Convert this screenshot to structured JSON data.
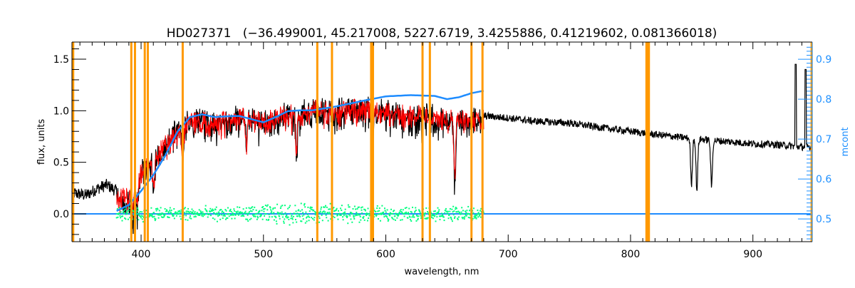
{
  "chart_data": {
    "type": "line",
    "title": "HD027371   (−36.499001, 45.217008, 5227.6719, 3.4255886, 0.41219602, 0.081366018)",
    "xlabel": "wavelength, nm",
    "ylabel": "flux, units",
    "y2label": "mcont",
    "xlim": [
      343.5,
      948.5
    ],
    "ylim": [
      -0.27,
      1.666
    ],
    "y2lim": [
      0.443,
      0.943
    ],
    "xticks": [
      "400",
      "500",
      "600",
      "700",
      "800",
      "900"
    ],
    "xtick_values": [
      400,
      500,
      600,
      700,
      800,
      900
    ],
    "yticks": [
      "0.0",
      "0.5",
      "1.0",
      "1.5"
    ],
    "ytick_values": [
      0,
      0.5,
      1.0,
      1.5
    ],
    "y2ticks": [
      "0.5",
      "0.6",
      "0.7",
      "0.8",
      "0.9"
    ],
    "y2tick_values": [
      0.5,
      0.6,
      0.7,
      0.8,
      0.9
    ],
    "colors": {
      "observed": "#000000",
      "model": "#ff0000",
      "residual": "#00ff7f",
      "continuum": "#1e8cff",
      "mask": "#ff9900",
      "zero": "#1e8cff"
    },
    "series": [
      {
        "name": "observed flux",
        "axis": "left",
        "x": [
          345,
          355,
          365,
          372,
          380,
          385,
          390,
          395,
          400,
          405,
          410,
          415,
          420,
          425,
          430,
          435,
          440,
          450,
          460,
          470,
          480,
          490,
          500,
          510,
          520,
          530,
          540,
          550,
          560,
          570,
          580,
          590,
          600,
          610,
          620,
          630,
          640,
          650,
          660,
          670,
          680,
          700,
          720,
          750,
          780,
          800,
          820,
          850,
          880,
          900,
          920,
          930,
          940,
          948
        ],
        "y": [
          0.2,
          0.18,
          0.25,
          0.28,
          0.22,
          0.1,
          0.15,
          0.25,
          0.45,
          0.5,
          0.55,
          0.62,
          0.72,
          0.8,
          0.85,
          0.9,
          0.95,
          0.95,
          0.92,
          0.95,
          1.0,
          0.98,
          0.92,
          0.97,
          1.0,
          1.02,
          1.05,
          1.05,
          1.03,
          1.07,
          1.05,
          1.05,
          1.02,
          1.01,
          1.0,
          0.99,
          0.98,
          0.96,
          0.95,
          0.95,
          0.95,
          0.93,
          0.9,
          0.88,
          0.83,
          0.8,
          0.77,
          0.73,
          0.7,
          0.68,
          0.67,
          0.66,
          0.65,
          0.65
        ]
      },
      {
        "name": "model flux",
        "axis": "left",
        "x": [
          380,
          390,
          400,
          410,
          420,
          430,
          440,
          450,
          460,
          470,
          480,
          490,
          500,
          510,
          520,
          530,
          540,
          550,
          560,
          570,
          580,
          590,
          600,
          620,
          640,
          660,
          680
        ],
        "y": [
          0.18,
          0.2,
          0.43,
          0.55,
          0.72,
          0.82,
          0.93,
          0.94,
          0.92,
          0.95,
          0.98,
          0.97,
          0.92,
          0.97,
          1.0,
          1.01,
          1.04,
          1.05,
          1.03,
          1.06,
          1.05,
          1.04,
          1.02,
          1.0,
          0.98,
          0.96,
          0.95
        ]
      },
      {
        "name": "residual",
        "axis": "left",
        "x": [
          380,
          680
        ],
        "y": [
          0.0,
          0.0
        ],
        "scatter": 0.08
      },
      {
        "name": "mcont",
        "axis": "right",
        "x": [
          380,
          390,
          400,
          410,
          420,
          430,
          440,
          450,
          460,
          470,
          480,
          490,
          500,
          510,
          520,
          530,
          540,
          560,
          580,
          600,
          620,
          640,
          650,
          660,
          670,
          680
        ],
        "y": [
          0.52,
          0.535,
          0.57,
          0.61,
          0.66,
          0.72,
          0.755,
          0.762,
          0.755,
          0.757,
          0.758,
          0.75,
          0.742,
          0.755,
          0.77,
          0.772,
          0.772,
          0.782,
          0.795,
          0.807,
          0.81,
          0.808,
          0.8,
          0.805,
          0.815,
          0.821
        ]
      },
      {
        "name": "zero line",
        "axis": "left",
        "x": [
          343.5,
          948.5
        ],
        "y": [
          0,
          0
        ]
      }
    ],
    "absorption_lines": [
      {
        "x": 393.4,
        "depth": 0.2
      },
      {
        "x": 396.8,
        "depth": 0.2
      },
      {
        "x": 410.2,
        "depth": 0.3
      },
      {
        "x": 434.0,
        "depth": 0.4
      },
      {
        "x": 486.1,
        "depth": 0.3
      },
      {
        "x": 527.0,
        "depth": 0.4
      },
      {
        "x": 589.0,
        "depth": 0.55
      },
      {
        "x": 656.3,
        "depth": 0.65
      },
      {
        "x": 849.8,
        "depth": 0.45
      },
      {
        "x": 854.2,
        "depth": 0.5
      },
      {
        "x": 866.2,
        "depth": 0.45
      }
    ],
    "spikes": [
      {
        "x": 935,
        "y": 1.45
      },
      {
        "x": 943,
        "y": 1.4
      }
    ],
    "mask_lines": [
      344.5,
      392,
      395,
      403,
      405.5,
      434,
      544,
      556,
      588,
      589.5,
      630,
      636,
      670,
      679,
      813,
      814,
      815,
      948
    ]
  }
}
